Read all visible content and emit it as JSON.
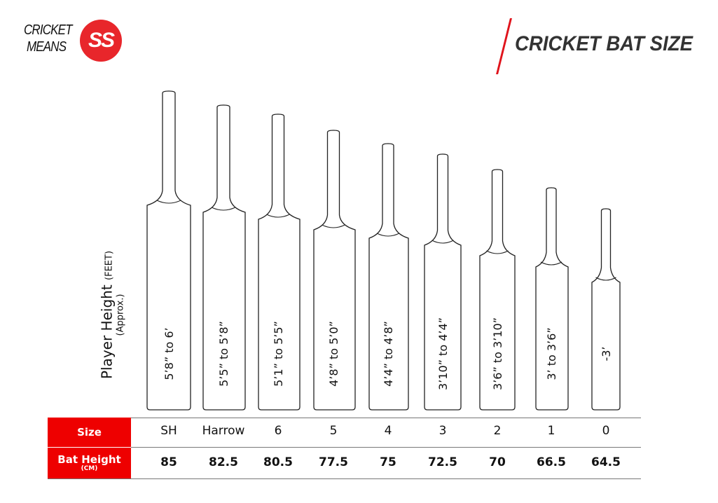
{
  "logo": {
    "line1": "CRICKET",
    "line2": "MEANS",
    "mark": "SS"
  },
  "title": "CRICKET BAT SIZE",
  "y_axis": {
    "label": "Player Height",
    "unit": "(FEET)",
    "note": "(Approx.)"
  },
  "colors": {
    "accent": "#ee0000",
    "title": "#333333",
    "outline": "#222222"
  },
  "table": {
    "size_header": "Size",
    "height_header": "Bat Height",
    "height_unit": "(CM)",
    "bats": [
      {
        "size": "SH",
        "bat_height": "85",
        "player_height": "5’8” to 6’"
      },
      {
        "size": "Harrow",
        "bat_height": "82.5",
        "player_height": "5’5” to 5’8”"
      },
      {
        "size": "6",
        "bat_height": "80.5",
        "player_height": "5’1” to 5’5”"
      },
      {
        "size": "5",
        "bat_height": "77.5",
        "player_height": "4’8” to 5’0”"
      },
      {
        "size": "4",
        "bat_height": "75",
        "player_height": "4’4” to 4’8”"
      },
      {
        "size": "3",
        "bat_height": "72.5",
        "player_height": "3’10” to 4’4”"
      },
      {
        "size": "2",
        "bat_height": "70",
        "player_height": "3’6” to 3’10”"
      },
      {
        "size": "1",
        "bat_height": "66.5",
        "player_height": "3’ to 3’6”"
      },
      {
        "size": "0",
        "bat_height": "64.5",
        "player_height": "-3’"
      }
    ]
  }
}
